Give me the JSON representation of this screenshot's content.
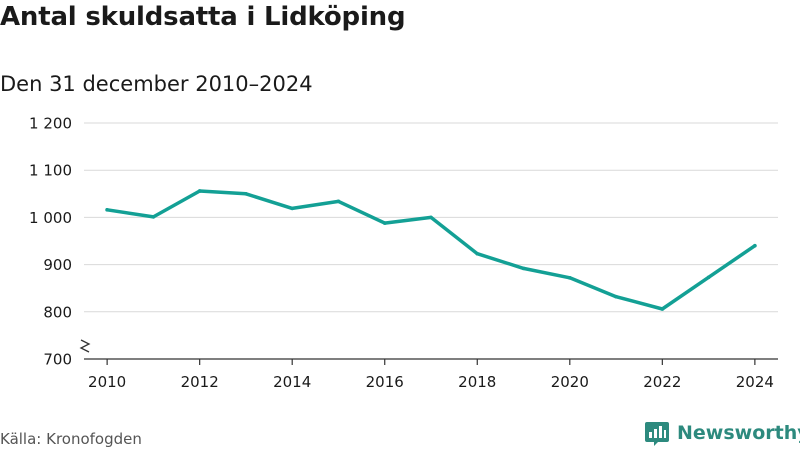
{
  "chart_data": {
    "type": "line",
    "title": "Antal skuldsatta i Lidköping",
    "subtitle": "Den 31 december 2010–2024",
    "x": [
      2010,
      2011,
      2012,
      2013,
      2014,
      2015,
      2016,
      2017,
      2018,
      2019,
      2020,
      2021,
      2022,
      2023,
      2024
    ],
    "series": [
      {
        "name": "Antal skuldsatta",
        "values": [
          1016,
          1001,
          1056,
          1050,
          1019,
          1034,
          988,
          1000,
          923,
          892,
          872,
          832,
          806,
          873,
          940
        ]
      }
    ],
    "xlim": [
      2009.5,
      2024.5
    ],
    "ylim": [
      700,
      1200
    ],
    "y_ticks": [
      700,
      800,
      900,
      1000,
      1100,
      1200
    ],
    "y_tick_labels": [
      "700",
      "800",
      "900",
      "1 000",
      "1 100",
      "1 200"
    ],
    "x_ticks": [
      2010,
      2012,
      2014,
      2016,
      2018,
      2020,
      2022,
      2024
    ],
    "x_tick_labels": [
      "2010",
      "2012",
      "2014",
      "2016",
      "2018",
      "2020",
      "2022",
      "2024"
    ],
    "xlabel": "",
    "ylabel": "",
    "grid": true,
    "axis_break": true,
    "line_color": "#13a095",
    "grid_color": "#d9d9d9"
  },
  "source": "Källa: Kronofogden",
  "brand": {
    "name": "Newsworthy",
    "color": "#2d8a7e"
  }
}
